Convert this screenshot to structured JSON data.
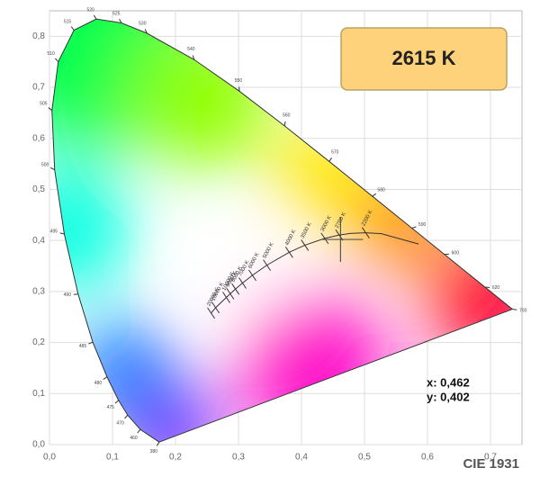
{
  "chart_data": {
    "type": "chromaticity",
    "title": "CIE 1931",
    "xlim": [
      0,
      0.75
    ],
    "ylim": [
      0,
      0.85
    ],
    "xticks": [
      {
        "value": 0,
        "label": "0,0"
      },
      {
        "value": 0.1,
        "label": "0,1"
      },
      {
        "value": 0.2,
        "label": "0,2"
      },
      {
        "value": 0.3,
        "label": "0,3"
      },
      {
        "value": 0.4,
        "label": "0,4"
      },
      {
        "value": 0.5,
        "label": "0,5"
      },
      {
        "value": 0.6,
        "label": "0,6"
      },
      {
        "value": 0.7,
        "label": "0,7"
      }
    ],
    "yticks": [
      {
        "value": 0,
        "label": "0,0"
      },
      {
        "value": 0.1,
        "label": "0,1"
      },
      {
        "value": 0.2,
        "label": "0,2"
      },
      {
        "value": 0.3,
        "label": "0,3"
      },
      {
        "value": 0.4,
        "label": "0,4"
      },
      {
        "value": 0.5,
        "label": "0,5"
      },
      {
        "value": 0.6,
        "label": "0,6"
      },
      {
        "value": 0.7,
        "label": "0,7"
      },
      {
        "value": 0.8,
        "label": "0,8"
      }
    ],
    "grid": true,
    "locus": {
      "x": [
        0.1741,
        0.144,
        0.1241,
        0.1096,
        0.0913,
        0.0687,
        0.0454,
        0.0235,
        0.0082,
        0.0039,
        0.0139,
        0.0389,
        0.0743,
        0.1142,
        0.1547,
        0.2296,
        0.3016,
        0.3731,
        0.4441,
        0.5125,
        0.5752,
        0.627,
        0.6915,
        0.7347
      ],
      "y": [
        0.005,
        0.0297,
        0.0578,
        0.0868,
        0.1327,
        0.2007,
        0.295,
        0.4127,
        0.5384,
        0.6548,
        0.7502,
        0.812,
        0.8338,
        0.8262,
        0.8059,
        0.7543,
        0.6923,
        0.6245,
        0.5547,
        0.4866,
        0.4242,
        0.3725,
        0.3083,
        0.2653
      ],
      "labels": [
        "380",
        "460",
        "470",
        "475",
        "480",
        "485",
        "490",
        "495",
        "500",
        "505",
        "510",
        "515",
        "520",
        "525",
        "530",
        "540",
        "550",
        "560",
        "570",
        "580",
        "590",
        "600",
        "620",
        "700"
      ]
    },
    "planck": {
      "x": [
        0.5857,
        0.5267,
        0.502,
        0.477,
        0.4599,
        0.4369,
        0.4053,
        0.3805,
        0.3451,
        0.3221,
        0.3064,
        0.2952,
        0.2869,
        0.2807,
        0.2637,
        0.2565
      ],
      "y": [
        0.3931,
        0.4133,
        0.415,
        0.4137,
        0.4106,
        0.4041,
        0.3907,
        0.3768,
        0.3516,
        0.3318,
        0.3166,
        0.3048,
        0.2956,
        0.2884,
        0.2683,
        0.2577
      ],
      "labels": [
        null,
        null,
        "2200 K",
        null,
        "2700 K",
        "3000 K",
        "3500 K",
        "4000 K",
        "5000 K",
        "6000 K",
        "7000 K",
        "8000 K",
        "9000 K",
        "10000 K",
        "15000 K",
        "20000 K"
      ]
    },
    "point": {
      "x": 0.462,
      "y": 0.402,
      "x_label": "x: 0,462",
      "y_label": "y: 0,402",
      "cct": "2615 K"
    }
  }
}
